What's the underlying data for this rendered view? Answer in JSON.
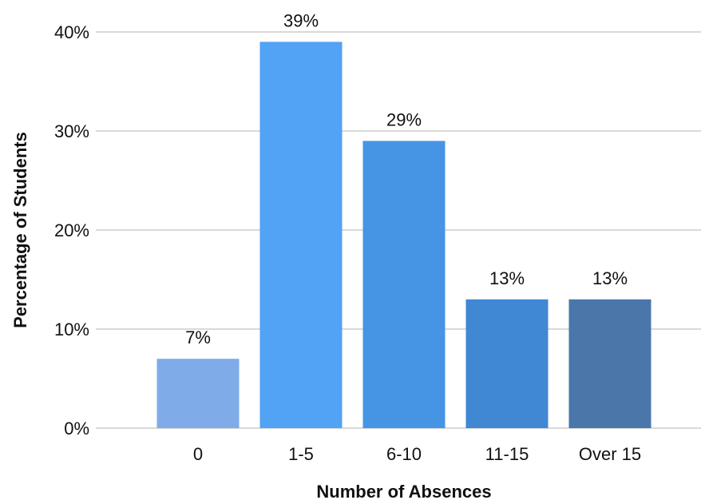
{
  "chart_data": {
    "type": "bar",
    "title": "",
    "xlabel": "Number of Absences",
    "ylabel": "Percentage of Students",
    "categories": [
      "0",
      "1-5",
      "6-10",
      "11-15",
      "Over 15"
    ],
    "values": [
      7,
      39,
      29,
      13,
      13
    ],
    "data_labels": [
      "7%",
      "39%",
      "29%",
      "13%",
      "13%"
    ],
    "bar_colors": [
      "#7FABE8",
      "#52A2F5",
      "#4695E5",
      "#4087D4",
      "#4A76AA"
    ],
    "ylim": [
      0,
      40
    ],
    "yticks": [
      0,
      10,
      20,
      30,
      40
    ],
    "ytick_labels": [
      "0%",
      "10%",
      "20%",
      "30%",
      "40%"
    ],
    "grid": true,
    "legend": "none"
  }
}
